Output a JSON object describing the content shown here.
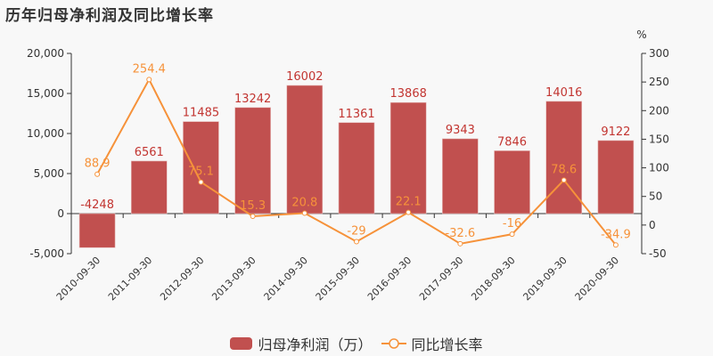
{
  "title": "历年归母净利润及同比增长率",
  "colors": {
    "bar": "#c1504f",
    "bar_label": "#c23531",
    "line": "#f6923a",
    "axis": "#333333",
    "background": "#f8f8f8"
  },
  "legend": {
    "bar_label": "归母净利润（万）",
    "line_label": "同比增长率"
  },
  "right_axis_unit": "%",
  "chart_data": {
    "type": "bar",
    "title": "历年归母净利润及同比增长率",
    "categories": [
      "2010-09-30",
      "2011-09-30",
      "2012-09-30",
      "2013-09-30",
      "2014-09-30",
      "2015-09-30",
      "2016-09-30",
      "2017-09-30",
      "2018-09-30",
      "2019-09-30",
      "2020-09-30"
    ],
    "series": [
      {
        "name": "归母净利润（万）",
        "type": "bar",
        "axis": "left",
        "values": [
          -4248,
          6561,
          11485,
          13242,
          16002,
          11361,
          13868,
          9343,
          7846,
          14016,
          9122
        ]
      },
      {
        "name": "同比增长率",
        "type": "line",
        "axis": "right",
        "values": [
          88.9,
          254.4,
          75.1,
          15.3,
          20.8,
          -29,
          22.1,
          -32.6,
          -16,
          78.6,
          -34.9
        ]
      }
    ],
    "xlabel": "",
    "ylabel": "",
    "ylabel_right": "%",
    "ylim": [
      -5000,
      20000
    ],
    "ylim_right": [
      -50,
      300
    ],
    "yticks": [
      "20,000",
      "15,000",
      "10,000",
      "5,000",
      "0",
      "-5,000"
    ],
    "yticks_right": [
      "300",
      "250",
      "200",
      "150",
      "100",
      "50",
      "0",
      "-50"
    ],
    "grid": false,
    "legend_position": "bottom"
  }
}
